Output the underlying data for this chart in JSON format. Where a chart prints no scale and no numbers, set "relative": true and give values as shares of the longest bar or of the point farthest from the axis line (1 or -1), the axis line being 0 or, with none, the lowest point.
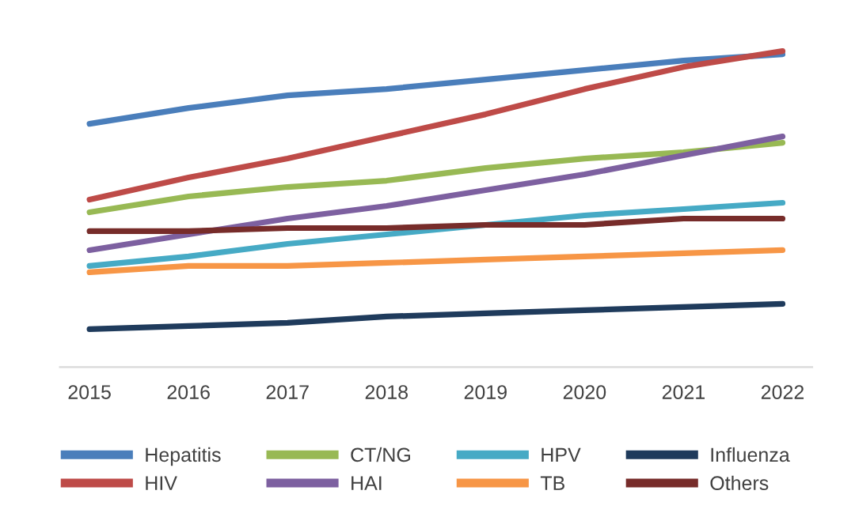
{
  "chart_data": {
    "type": "line",
    "relative": true,
    "categories": [
      "2015",
      "2016",
      "2017",
      "2018",
      "2019",
      "2020",
      "2021",
      "2022"
    ],
    "series": [
      {
        "name": "Hepatitis",
        "color": "#4a7ebb",
        "values": [
          0.77,
          0.82,
          0.86,
          0.88,
          0.91,
          0.94,
          0.97,
          0.99
        ]
      },
      {
        "name": "HIV",
        "color": "#be4b48",
        "values": [
          0.53,
          0.6,
          0.66,
          0.73,
          0.8,
          0.88,
          0.95,
          1.0
        ]
      },
      {
        "name": "CT/NG",
        "color": "#98b954",
        "values": [
          0.49,
          0.54,
          0.57,
          0.59,
          0.63,
          0.66,
          0.68,
          0.71
        ]
      },
      {
        "name": "HAI",
        "color": "#7d60a0",
        "values": [
          0.37,
          0.42,
          0.47,
          0.51,
          0.56,
          0.61,
          0.67,
          0.73
        ]
      },
      {
        "name": "HPV",
        "color": "#46aac5",
        "values": [
          0.32,
          0.35,
          0.39,
          0.42,
          0.45,
          0.48,
          0.5,
          0.52
        ]
      },
      {
        "name": "TB",
        "color": "#f79646",
        "values": [
          0.3,
          0.32,
          0.32,
          0.33,
          0.34,
          0.35,
          0.36,
          0.37
        ]
      },
      {
        "name": "Influenza",
        "color": "#1f3b5c",
        "values": [
          0.12,
          0.13,
          0.14,
          0.16,
          0.17,
          0.18,
          0.19,
          0.2
        ]
      },
      {
        "name": "Others",
        "color": "#772c2a",
        "values": [
          0.43,
          0.43,
          0.44,
          0.44,
          0.45,
          0.45,
          0.47,
          0.47
        ]
      }
    ],
    "legend": "bottom",
    "grid": false,
    "marker": "none",
    "line_style": "solid"
  }
}
